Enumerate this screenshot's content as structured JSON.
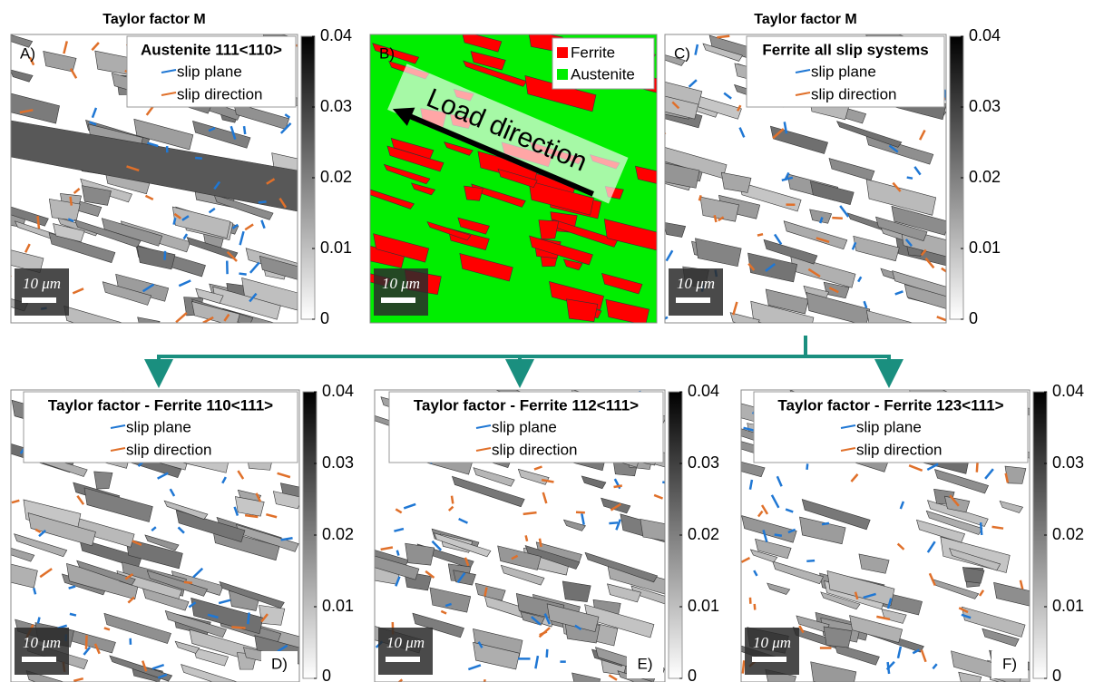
{
  "header": {
    "left_title": "Taylor factor M",
    "right_title": "Taylor factor M"
  },
  "panels": [
    {
      "label": "A)",
      "title": "Austenite 111<110>",
      "legend": [
        "slip plane",
        "slip direction"
      ],
      "legend_colors": [
        "#1f77d4",
        "#e0702a"
      ],
      "scale_bar": "10 μm",
      "colorbar": {
        "lim": [
          0,
          0.04
        ],
        "ticks": [
          0,
          0.01,
          0.02,
          0.03,
          0.04
        ]
      }
    },
    {
      "label": "B)",
      "legend": [
        "Ferrite",
        "Austenite"
      ],
      "legend_colors": [
        "#ff0000",
        "#00ee00"
      ],
      "annotation": "Load direction",
      "scale_bar": "10 μm"
    },
    {
      "label": "C)",
      "title": "Ferrite all slip systems",
      "legend": [
        "slip plane",
        "slip direction"
      ],
      "legend_colors": [
        "#1f77d4",
        "#e0702a"
      ],
      "scale_bar": "10 μm",
      "colorbar": {
        "lim": [
          0,
          0.04
        ],
        "ticks": [
          0,
          0.01,
          0.02,
          0.03,
          0.04
        ]
      }
    },
    {
      "label": "D)",
      "title": "Taylor factor - Ferrite 110<111>",
      "legend": [
        "slip plane",
        "slip direction"
      ],
      "legend_colors": [
        "#1f77d4",
        "#e0702a"
      ],
      "scale_bar": "10 μm",
      "colorbar": {
        "lim": [
          0,
          0.04
        ],
        "ticks": [
          0,
          0.01,
          0.02,
          0.03,
          0.04
        ]
      }
    },
    {
      "label": "E)",
      "title": "Taylor factor - Ferrite 112<111>",
      "legend": [
        "slip plane",
        "slip direction"
      ],
      "legend_colors": [
        "#1f77d4",
        "#e0702a"
      ],
      "scale_bar": "10 μm",
      "colorbar": {
        "lim": [
          0,
          0.04
        ],
        "ticks": [
          0,
          0.01,
          0.02,
          0.03,
          0.04
        ]
      }
    },
    {
      "label": "F)",
      "title": "Taylor factor - Ferrite 123<111>",
      "legend": [
        "slip plane",
        "slip direction"
      ],
      "legend_colors": [
        "#1f77d4",
        "#e0702a"
      ],
      "scale_bar": "10 μm",
      "colorbar": {
        "lim": [
          0,
          0.04
        ],
        "ticks": [
          0,
          0.01,
          0.02,
          0.03,
          0.04
        ]
      }
    }
  ]
}
